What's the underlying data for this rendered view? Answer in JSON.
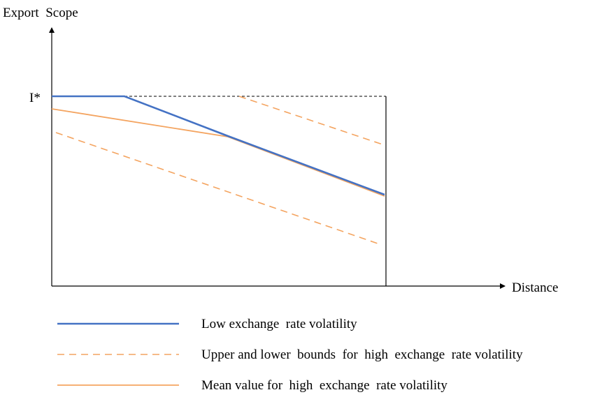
{
  "y_axis_label": "Export  Scope",
  "x_axis_label": "Distance",
  "threshold_label": "I*",
  "legend": [
    {
      "label": "Low exchange  rate volatility",
      "color": "#4472c4",
      "style": "solid"
    },
    {
      "label": "Upper and lower  bounds  for  high  exchange  rate volatility",
      "color": "#f4a460",
      "style": "dashed"
    },
    {
      "label": "Mean value for  high  exchange  rate volatility",
      "color": "#f4a460",
      "style": "solid"
    }
  ],
  "colors": {
    "low_volatility": "#4472c4",
    "high_volatility": "#f4a460",
    "axes": "#000000"
  }
}
